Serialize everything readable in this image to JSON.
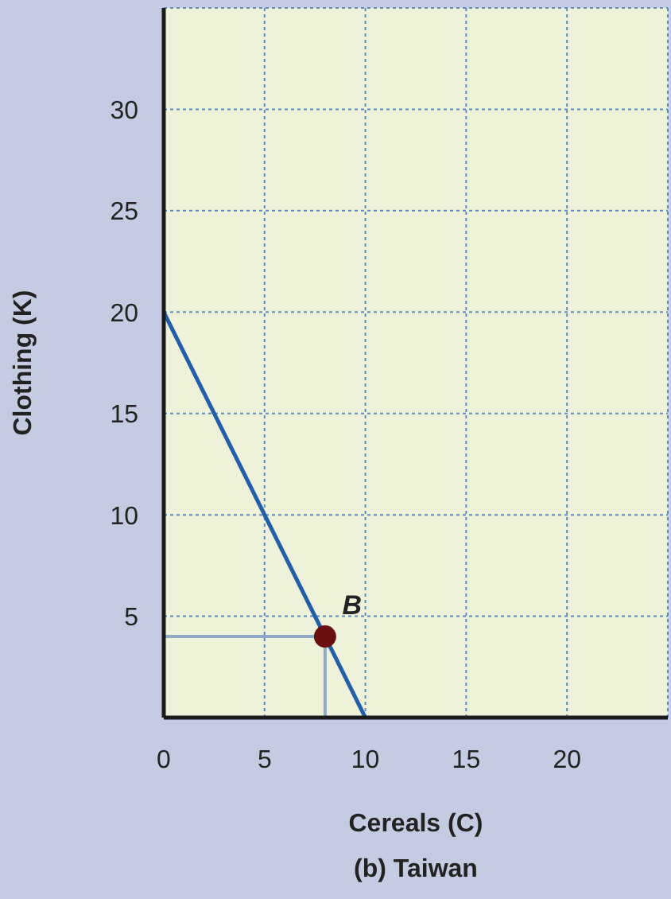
{
  "chart_data": {
    "type": "line",
    "title": "(b) Taiwan",
    "xlabel": "Cereals (C)",
    "ylabel": "Clothing (K)",
    "xlim": [
      0,
      25
    ],
    "ylim": [
      0,
      35
    ],
    "xticks": [
      0,
      5,
      10,
      15,
      20
    ],
    "yticks": [
      5,
      10,
      15,
      20,
      25,
      30
    ],
    "grid": true,
    "series": [
      {
        "color": "#1f5fae",
        "x": [
          0,
          10
        ],
        "values": [
          20,
          0
        ]
      },
      {
        "color": "#8fa9c9",
        "x": [
          0,
          8
        ],
        "values": [
          4,
          4
        ]
      },
      {
        "color": "#8fa9c9",
        "x": [
          8,
          8
        ],
        "values": [
          0,
          4
        ]
      },
      {
        "type": "scatter",
        "color": "#6b1010",
        "x": [
          8
        ],
        "values": [
          4
        ]
      }
    ],
    "annotations": [
      {
        "text": "B",
        "x": 8,
        "y": 4
      }
    ]
  }
}
